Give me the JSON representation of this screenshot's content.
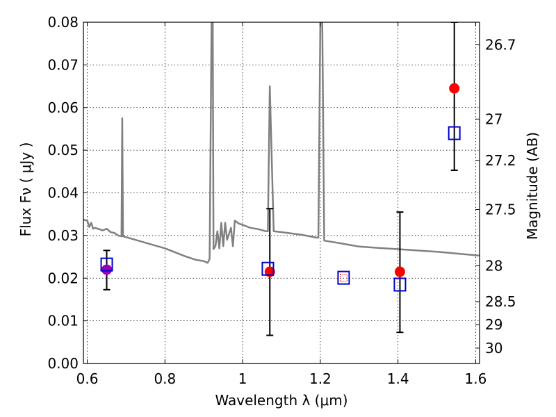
{
  "chart_data": {
    "type": "scatter",
    "title": "",
    "xlabel": "Wavelength  λ (μm)",
    "ylabel": "Flux  Fν  ( μJy )",
    "ylabel_right": "Magnitude (AB)",
    "xlim": [
      0.59,
      1.61
    ],
    "ylim": [
      0.0,
      0.08
    ],
    "grid": true,
    "x_ticks": [
      0.6,
      0.8,
      1.0,
      1.2,
      1.4,
      1.6
    ],
    "x_tick_labels": [
      "0.6",
      "0.8",
      "1",
      "1.2",
      "1.4",
      "1.6"
    ],
    "y_ticks": [
      0.0,
      0.01,
      0.02,
      0.03,
      0.04,
      0.05,
      0.06,
      0.07,
      0.08
    ],
    "y_tick_labels": [
      "0.00",
      "0.01",
      "0.02",
      "0.03",
      "0.04",
      "0.05",
      "0.06",
      "0.07",
      "0.08"
    ],
    "right_ticks": [
      {
        "flux": 0.0747,
        "label": "26.7"
      },
      {
        "flux": 0.0573,
        "label": "27"
      },
      {
        "flux": 0.0476,
        "label": "27.2"
      },
      {
        "flux": 0.0361,
        "label": "27.5"
      },
      {
        "flux": 0.0229,
        "label": "28"
      },
      {
        "flux": 0.0145,
        "label": "28.5"
      },
      {
        "flux": 0.0091,
        "label": "29"
      },
      {
        "flux": 0.0036,
        "label": "30"
      }
    ],
    "series": [
      {
        "kind": "line",
        "color": "#808080",
        "points": [
          [
            0.59,
            0.0337
          ],
          [
            0.6,
            0.0335
          ],
          [
            0.605,
            0.032
          ],
          [
            0.61,
            0.033
          ],
          [
            0.615,
            0.0316
          ],
          [
            0.62,
            0.0318
          ],
          [
            0.63,
            0.0315
          ],
          [
            0.64,
            0.0312
          ],
          [
            0.65,
            0.0316
          ],
          [
            0.66,
            0.0308
          ],
          [
            0.67,
            0.0306
          ],
          [
            0.68,
            0.03
          ],
          [
            0.688,
            0.0298
          ],
          [
            0.69,
            0.0575
          ],
          [
            0.692,
            0.0298
          ],
          [
            0.7,
            0.0296
          ],
          [
            0.72,
            0.0291
          ],
          [
            0.75,
            0.0283
          ],
          [
            0.8,
            0.027
          ],
          [
            0.85,
            0.0252
          ],
          [
            0.88,
            0.0243
          ],
          [
            0.9,
            0.024
          ],
          [
            0.91,
            0.0236
          ],
          [
            0.915,
            0.0245
          ],
          [
            0.92,
            0.08
          ],
          [
            0.923,
            0.08
          ],
          [
            0.925,
            0.0268
          ],
          [
            0.93,
            0.0275
          ],
          [
            0.935,
            0.031
          ],
          [
            0.94,
            0.027
          ],
          [
            0.945,
            0.033
          ],
          [
            0.95,
            0.0275
          ],
          [
            0.955,
            0.033
          ],
          [
            0.96,
            0.029
          ],
          [
            0.97,
            0.0318
          ],
          [
            0.975,
            0.0275
          ],
          [
            0.98,
            0.0335
          ],
          [
            0.99,
            0.0328
          ],
          [
            1.0,
            0.0325
          ],
          [
            1.02,
            0.0318
          ],
          [
            1.04,
            0.0315
          ],
          [
            1.06,
            0.031
          ],
          [
            1.065,
            0.031
          ],
          [
            1.07,
            0.065
          ],
          [
            1.08,
            0.031
          ],
          [
            1.1,
            0.0308
          ],
          [
            1.15,
            0.0302
          ],
          [
            1.19,
            0.0295
          ],
          [
            1.195,
            0.0295
          ],
          [
            1.2,
            0.08
          ],
          [
            1.205,
            0.08
          ],
          [
            1.21,
            0.0288
          ],
          [
            1.25,
            0.0282
          ],
          [
            1.3,
            0.0274
          ],
          [
            1.35,
            0.0271
          ],
          [
            1.4,
            0.0268
          ],
          [
            1.45,
            0.0265
          ],
          [
            1.5,
            0.0262
          ],
          [
            1.55,
            0.0258
          ],
          [
            1.61,
            0.0253
          ]
        ]
      },
      {
        "kind": "model-squares",
        "color": "#0000cc",
        "points": [
          [
            0.65,
            0.0232
          ],
          [
            1.065,
            0.0222
          ],
          [
            1.26,
            0.0201
          ],
          [
            1.405,
            0.0185
          ],
          [
            1.545,
            0.054
          ]
        ]
      },
      {
        "kind": "observed",
        "color": "#ff0000",
        "points": [
          {
            "x": 1.07,
            "y": 0.0215,
            "err": [
              0.0066,
              0.0363
            ]
          },
          {
            "x": 1.405,
            "y": 0.0215,
            "err": [
              0.0073,
              0.0355
            ]
          },
          {
            "x": 1.545,
            "y": 0.0645,
            "err": [
              0.0453,
              0.08
            ]
          }
        ]
      },
      {
        "kind": "observed-purple",
        "color": "#9900bb",
        "points": [
          {
            "x": 0.65,
            "y": 0.022,
            "err": [
              0.0173,
              0.0265
            ]
          }
        ]
      },
      {
        "kind": "upper-limit-marker",
        "color": "#ff0000",
        "points": [
          [
            1.26,
            0.0201
          ]
        ]
      }
    ]
  }
}
